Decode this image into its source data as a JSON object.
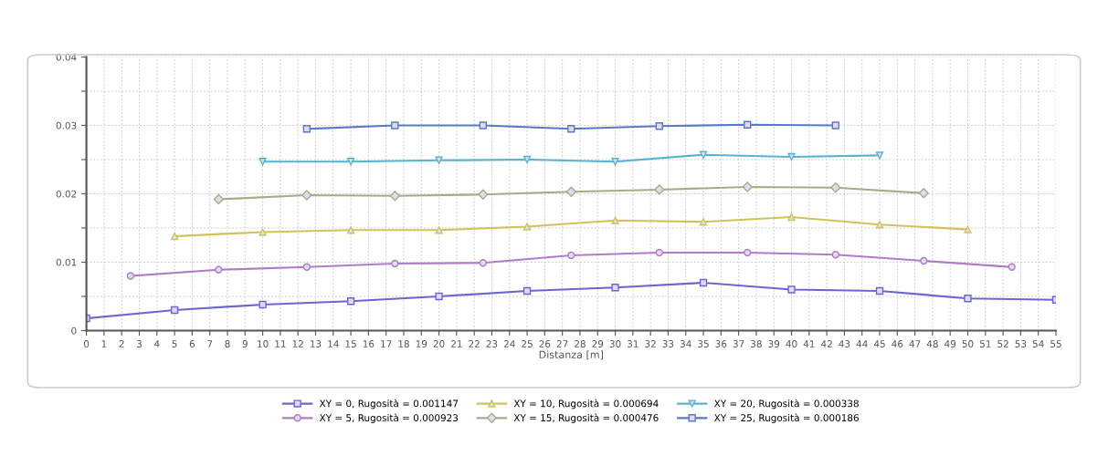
{
  "chart_data": {
    "type": "line",
    "xlabel": "Distanza [m]",
    "xlim": [
      0,
      55
    ],
    "xticks": [
      0,
      1,
      2,
      3,
      4,
      5,
      6,
      7,
      8,
      9,
      10,
      11,
      12,
      13,
      14,
      15,
      16,
      17,
      18,
      19,
      20,
      21,
      22,
      23,
      24,
      25,
      26,
      27,
      28,
      29,
      30,
      31,
      32,
      33,
      34,
      35,
      36,
      37,
      38,
      39,
      40,
      41,
      42,
      43,
      44,
      45,
      46,
      47,
      48,
      49,
      50,
      51,
      52,
      53,
      54,
      55
    ],
    "ylim": [
      0,
      0.04
    ],
    "yticks": [
      0,
      {
        "value": 0.005,
        "label": null
      },
      {
        "value": 0.01,
        "label": "0.01"
      },
      {
        "value": 0.015,
        "label": null
      },
      {
        "value": 0.02,
        "label": "0.02"
      },
      {
        "value": 0.025,
        "label": null
      },
      {
        "value": 0.03,
        "label": "0.03"
      },
      {
        "value": 0.035,
        "label": null
      },
      {
        "value": 0.04,
        "label": "0.04"
      }
    ],
    "grid": true,
    "legend": "bottom",
    "line_style": "solid",
    "series": [
      {
        "name": "XY = 0, Rugosità = 0.001147",
        "color": "#6b66d2",
        "marker": "square",
        "x": [
          0,
          5,
          10,
          15,
          20,
          25,
          30,
          35,
          40,
          45,
          50,
          55
        ],
        "values": [
          0.0018,
          0.003,
          0.0038,
          0.0043,
          0.005,
          0.0058,
          0.0063,
          0.007,
          0.006,
          0.0058,
          0.0047,
          0.0045
        ]
      },
      {
        "name": "XY = 5, Rugosità = 0.000923",
        "color": "#b07cc6",
        "marker": "circle",
        "x": [
          2.5,
          7.5,
          12.5,
          17.5,
          22.5,
          27.5,
          32.5,
          37.5,
          42.5,
          47.5,
          52.5
        ],
        "values": [
          0.008,
          0.0089,
          0.0093,
          0.0098,
          0.0099,
          0.011,
          0.0114,
          0.0114,
          0.0111,
          0.0102,
          0.0093
        ]
      },
      {
        "name": "XY = 10, Rugosità = 0.000694",
        "color": "#d2c25a",
        "marker": "triangle",
        "x": [
          5,
          10,
          15,
          20,
          25,
          30,
          35,
          40,
          45,
          50
        ],
        "values": [
          0.0138,
          0.0144,
          0.0147,
          0.0147,
          0.0152,
          0.0161,
          0.0159,
          0.0166,
          0.0155,
          0.0148
        ]
      },
      {
        "name": "XY = 15, Rugosità = 0.000476",
        "color": "#a4ad86",
        "marker": "diamond",
        "x": [
          7.5,
          12.5,
          17.5,
          22.5,
          27.5,
          32.5,
          37.5,
          42.5,
          47.5
        ],
        "values": [
          0.0192,
          0.0198,
          0.0197,
          0.0199,
          0.0203,
          0.0206,
          0.021,
          0.0209,
          0.0201
        ]
      },
      {
        "name": "XY = 20, Rugosità = 0.000338",
        "color": "#58b4cc",
        "marker": "triangle_down",
        "x": [
          10,
          15,
          20,
          25,
          30,
          35,
          40,
          45
        ],
        "values": [
          0.0247,
          0.0247,
          0.0249,
          0.025,
          0.0247,
          0.0257,
          0.0254,
          0.0256
        ]
      },
      {
        "name": "XY = 25, Rugosità = 0.000186",
        "color": "#5a78c6",
        "marker": "square",
        "x": [
          12.5,
          17.5,
          22.5,
          27.5,
          32.5,
          37.5,
          42.5
        ],
        "values": [
          0.0295,
          0.03,
          0.03,
          0.0295,
          0.0299,
          0.0301,
          0.03
        ]
      }
    ]
  }
}
